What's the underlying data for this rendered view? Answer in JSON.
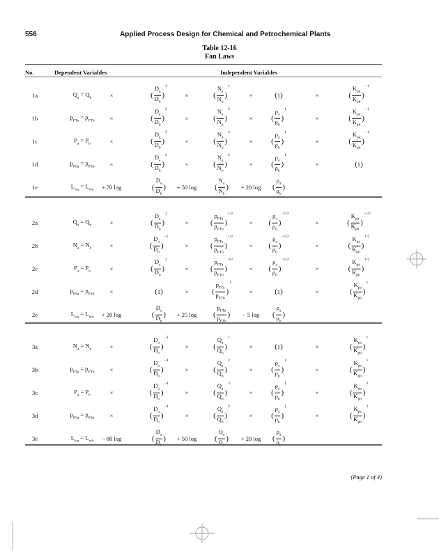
{
  "header": {
    "page_number": "556",
    "book_title": "Applied Process Design for Chemical and Petrochemical Plants"
  },
  "table": {
    "title": "Table 12-16",
    "subtitle": "Fan Laws",
    "columns": {
      "no": "No.",
      "dependent": "Dependent Variables",
      "independent": "Independent Variables"
    },
    "sections": [
      {
        "rows": [
          {
            "no": "1a",
            "dep": {
              "base": "Q",
              "a": "a",
              "b": "b"
            },
            "cells": [
              "×",
              {
                "base": "D",
                "a": "a",
                "b": "b",
                "exp": "3"
              },
              "×",
              {
                "base": "N",
                "a": "a",
                "b": "b",
                "exp": "1"
              },
              "×",
              {
                "one": "1"
              },
              "×",
              {
                "base": "K",
                "a": "pa",
                "b": "pb",
                "exp": "−1"
              }
            ]
          },
          {
            "no": "1b",
            "dep": {
              "base": "p",
              "a": "FTa",
              "b": "FTb"
            },
            "cells": [
              "×",
              {
                "base": "D",
                "a": "a",
                "b": "b",
                "exp": "2"
              },
              "×",
              {
                "base": "N",
                "a": "a",
                "b": "b",
                "exp": "2"
              },
              "×",
              {
                "base": "ρ",
                "a": "a",
                "b": "b",
                "exp": "1"
              },
              "×",
              {
                "base": "K",
                "a": "pa",
                "b": "pb",
                "exp": "−1"
              }
            ]
          },
          {
            "no": "1c",
            "dep": {
              "base": "P",
              "a": "a",
              "b": "b"
            },
            "cells": [
              "×",
              {
                "base": "D",
                "a": "a",
                "b": "b",
                "exp": "5"
              },
              "×",
              {
                "base": "N",
                "a": "a",
                "b": "b",
                "exp": "3"
              },
              "×",
              {
                "base": "ρ",
                "a": "a",
                "b": "b",
                "exp": "1"
              },
              "×",
              {
                "base": "K",
                "a": "pa",
                "b": "pb",
                "exp": "−1"
              }
            ]
          },
          {
            "no": "1d",
            "dep": {
              "base": "p",
              "a": "FSa",
              "b": "FSb"
            },
            "cells": [
              "×",
              {
                "base": "D",
                "a": "a",
                "b": "b",
                "exp": "2"
              },
              "×",
              {
                "base": "N",
                "a": "a",
                "b": "b",
                "exp": "2"
              },
              "×",
              {
                "base": "ρ",
                "a": "a",
                "b": "b",
                "exp": "1"
              },
              "×",
              {
                "one": "1"
              }
            ]
          },
          {
            "no": "1e",
            "dep": {
              "base": "L",
              "a": "wa",
              "b": "wb"
            },
            "cells": [
              "+ 70 log",
              {
                "base": "D",
                "a": "a",
                "b": "b"
              },
              "+ 50 log",
              {
                "base": "N",
                "a": "a",
                "b": "b"
              },
              "+ 20 log",
              {
                "base": "ρ",
                "a": "a",
                "b": "b"
              },
              "",
              ""
            ]
          }
        ]
      },
      {
        "rows": [
          {
            "no": "2a",
            "dep": {
              "base": "Q",
              "a": "a",
              "b": "b"
            },
            "cells": [
              "×",
              {
                "base": "D",
                "a": "a",
                "b": "b",
                "exp": "2"
              },
              "×",
              {
                "base": "p",
                "a": "FTa",
                "b": "FTb",
                "exp": "1/2"
              },
              "×",
              {
                "base": "ρ",
                "a": "a",
                "b": "b",
                "exp": "−1/2"
              },
              "×",
              {
                "base": "K",
                "a": "pa",
                "b": "pb",
                "exp": "−1/2"
              }
            ]
          },
          {
            "no": "2b",
            "dep": {
              "base": "N",
              "a": "a",
              "b": "b"
            },
            "cells": [
              "×",
              {
                "base": "D",
                "a": "a",
                "b": "b",
                "exp": "−1"
              },
              "×",
              {
                "base": "p",
                "a": "FTa",
                "b": "FTb",
                "exp": "1/2"
              },
              "×",
              {
                "base": "ρ",
                "a": "a",
                "b": "b",
                "exp": "−1/2"
              },
              "×",
              {
                "base": "K",
                "a": "pa",
                "b": "pb",
                "exp": "1/2"
              }
            ]
          },
          {
            "no": "2c",
            "dep": {
              "base": "P",
              "a": "a",
              "b": "b"
            },
            "cells": [
              "×",
              {
                "base": "D",
                "a": "a",
                "b": "b",
                "exp": "2"
              },
              "×",
              {
                "base": "p",
                "a": "FTa",
                "b": "FTb",
                "exp": "3/2"
              },
              "×",
              {
                "base": "ρ",
                "a": "a",
                "b": "b",
                "exp": "−1/2"
              },
              "×",
              {
                "base": "K",
                "a": "pa",
                "b": "pb",
                "exp": "1/2"
              }
            ]
          },
          {
            "no": "2d",
            "dep": {
              "base": "p",
              "a": "FSa",
              "b": "FSb"
            },
            "cells": [
              "×",
              {
                "one": "1"
              },
              "×",
              {
                "base": "p",
                "a": "FTa",
                "b": "FTb",
                "exp": "1"
              },
              "×",
              {
                "one": "1"
              },
              "×",
              {
                "base": "K",
                "a": "pa",
                "b": "pb",
                "exp": "1"
              }
            ]
          },
          {
            "no": "2e",
            "dep": {
              "base": "L",
              "a": "wa",
              "b": "wb"
            },
            "cells": [
              "+ 20 log",
              {
                "base": "D",
                "a": "a",
                "b": "b"
              },
              "+ 25 log",
              {
                "base": "p",
                "a": "FTa",
                "b": "FTb"
              },
              "− 5 log",
              {
                "base": "ρ",
                "a": "a",
                "b": "b"
              },
              "",
              ""
            ]
          }
        ]
      },
      {
        "rows": [
          {
            "no": "3a",
            "dep": {
              "base": "N",
              "a": "a",
              "b": "b"
            },
            "cells": [
              "×",
              {
                "base": "D",
                "a": "a",
                "b": "b",
                "exp": "−3"
              },
              "×",
              {
                "base": "Q",
                "a": "a",
                "b": "b",
                "exp": "1"
              },
              "×",
              {
                "one": "1"
              },
              "×",
              {
                "base": "K",
                "a": "pa",
                "b": "pb",
                "exp": "1"
              }
            ]
          },
          {
            "no": "3b",
            "dep": {
              "base": "p",
              "a": "FTa",
              "b": "FTb"
            },
            "cells": [
              "×",
              {
                "base": "D",
                "a": "a",
                "b": "b",
                "exp": "−4"
              },
              "×",
              {
                "base": "Q",
                "a": "a",
                "b": "b",
                "exp": "2"
              },
              "×",
              {
                "base": "ρ",
                "a": "a",
                "b": "b",
                "exp": "1"
              },
              "×",
              {
                "base": "K",
                "a": "pa",
                "b": "pb",
                "exp": "1"
              }
            ]
          },
          {
            "no": "3c",
            "dep": {
              "base": "P",
              "a": "a",
              "b": "b"
            },
            "cells": [
              "×",
              {
                "base": "D",
                "a": "a",
                "b": "b",
                "exp": "−4"
              },
              "×",
              {
                "base": "Q",
                "a": "a",
                "b": "b",
                "exp": "3"
              },
              "×",
              {
                "base": "ρ",
                "a": "a",
                "b": "b",
                "exp": "1"
              },
              "×",
              {
                "base": "K",
                "a": "pa",
                "b": "pb",
                "exp": "2"
              }
            ]
          },
          {
            "no": "3d",
            "dep": {
              "base": "p",
              "a": "FSa",
              "b": "FSb"
            },
            "cells": [
              "×",
              {
                "base": "D",
                "a": "a",
                "b": "b",
                "exp": "−4"
              },
              "×",
              {
                "base": "Q",
                "a": "a",
                "b": "b",
                "exp": "2"
              },
              "×",
              {
                "base": "ρ",
                "a": "a",
                "b": "b",
                "exp": "1"
              },
              "×",
              {
                "base": "K",
                "a": "pa",
                "b": "pb",
                "exp": "2"
              }
            ]
          },
          {
            "no": "3e",
            "dep": {
              "base": "L",
              "a": "wa",
              "b": "wb"
            },
            "cells": [
              "− 80 log",
              {
                "base": "D",
                "a": "a",
                "b": "b"
              },
              "+ 50 log",
              {
                "base": "Q",
                "a": "a",
                "b": "b"
              },
              "+ 20 log",
              {
                "base": "ρ",
                "a": "a",
                "b": "b"
              },
              "",
              ""
            ]
          }
        ]
      }
    ]
  },
  "footer": {
    "page_indicator": "(Page 1 of 4)"
  }
}
